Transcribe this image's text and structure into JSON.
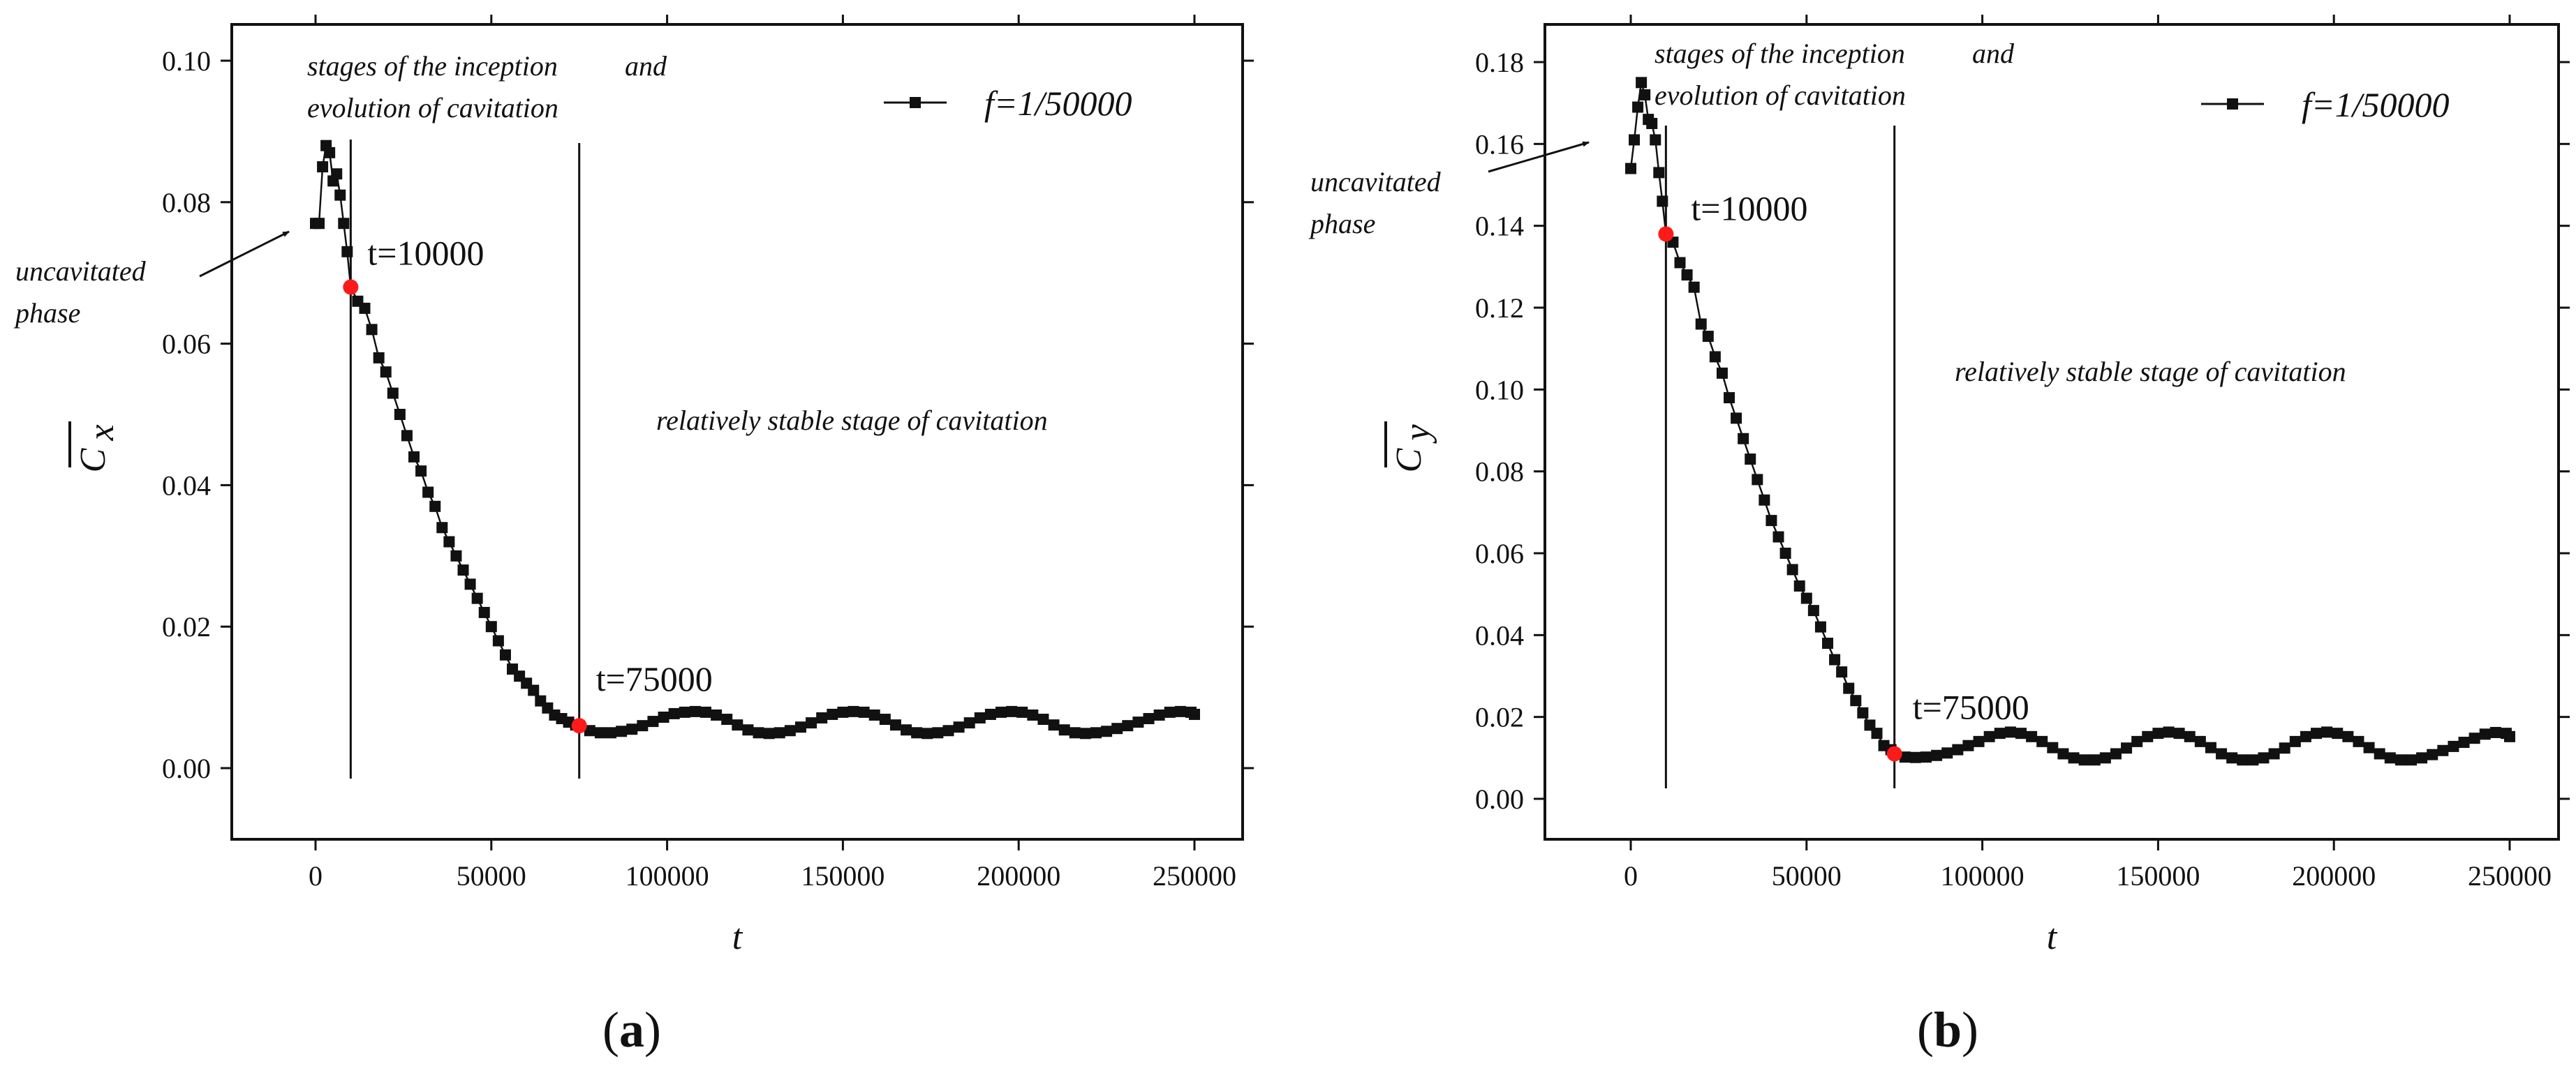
{
  "chart_data": [
    {
      "type": "line",
      "panel_label": "(a)",
      "panel_letter": "a",
      "xlabel": "t",
      "ylabel_symbol": "C",
      "ylabel_subscript": "x",
      "xlim": [
        -25000,
        275000
      ],
      "ylim": [
        -0.01,
        0.105
      ],
      "xticks": [
        0,
        50000,
        100000,
        150000,
        200000,
        250000
      ],
      "xtick_labels": [
        "0",
        "50000",
        "100000",
        "150000",
        "200000",
        "250000"
      ],
      "yticks": [
        0.0,
        0.02,
        0.04,
        0.06,
        0.08,
        0.1
      ],
      "ytick_labels": [
        "0.00",
        "0.02",
        "0.04",
        "0.06",
        "0.08",
        "0.10"
      ],
      "legend": "f=1/50000",
      "series": [
        {
          "name": "f=1/50000",
          "x": [
            0,
            1000,
            2000,
            3000,
            4000,
            5000,
            6000,
            7000,
            8000,
            9000,
            10000,
            12000,
            14000,
            16000,
            18000,
            20000,
            22000,
            24000,
            26000,
            28000,
            30000,
            32000,
            34000,
            36000,
            38000,
            40000,
            42000,
            44000,
            46000,
            48000,
            50000,
            52000,
            54000,
            56000,
            58000,
            60000,
            62000,
            64000,
            66000,
            68000,
            70000,
            72000,
            74000,
            75000,
            78000,
            81000,
            84000,
            87000,
            90000,
            93000,
            96000,
            99000,
            102000,
            105000,
            108000,
            111000,
            114000,
            117000,
            120000,
            123000,
            126000,
            129000,
            132000,
            135000,
            138000,
            141000,
            144000,
            147000,
            150000,
            153000,
            156000,
            159000,
            162000,
            165000,
            168000,
            171000,
            174000,
            177000,
            180000,
            183000,
            186000,
            189000,
            192000,
            195000,
            198000,
            201000,
            204000,
            207000,
            210000,
            213000,
            216000,
            219000,
            222000,
            225000,
            228000,
            231000,
            234000,
            237000,
            240000,
            243000,
            246000,
            249000,
            250000
          ],
          "y": [
            0.077,
            0.077,
            0.085,
            0.088,
            0.087,
            0.083,
            0.084,
            0.081,
            0.077,
            0.073,
            0.068,
            0.066,
            0.065,
            0.062,
            0.058,
            0.056,
            0.053,
            0.05,
            0.047,
            0.044,
            0.042,
            0.039,
            0.037,
            0.034,
            0.032,
            0.03,
            0.028,
            0.026,
            0.024,
            0.022,
            0.02,
            0.018,
            0.016,
            0.014,
            0.013,
            0.012,
            0.011,
            0.0095,
            0.0085,
            0.0075,
            0.007,
            0.0065,
            0.0061,
            0.006,
            0.0053,
            0.005,
            0.005,
            0.0052,
            0.0055,
            0.006,
            0.0066,
            0.0072,
            0.0077,
            0.0079,
            0.008,
            0.0079,
            0.0075,
            0.0069,
            0.0061,
            0.0054,
            0.005,
            0.0049,
            0.005,
            0.0053,
            0.0058,
            0.0064,
            0.0071,
            0.0076,
            0.0079,
            0.008,
            0.0079,
            0.0075,
            0.0069,
            0.0061,
            0.0054,
            0.005,
            0.0049,
            0.005,
            0.0053,
            0.0058,
            0.0064,
            0.0071,
            0.0076,
            0.0079,
            0.008,
            0.0079,
            0.0075,
            0.0069,
            0.0061,
            0.0054,
            0.005,
            0.0049,
            0.005,
            0.0052,
            0.0056,
            0.006,
            0.0065,
            0.007,
            0.0075,
            0.0079,
            0.008,
            0.0079,
            0.0076
          ]
        }
      ],
      "vlines": [
        10000,
        75000
      ],
      "highlights": [
        {
          "x": 10000,
          "y": 0.068,
          "label": "t=10000"
        },
        {
          "x": 75000,
          "y": 0.006,
          "label": "t=75000"
        }
      ],
      "annotations": {
        "stages_line1": "stages of the inception",
        "stages_line2": "and",
        "stages_line3": "evolution of cavitation",
        "uncav_line1": "uncavitated",
        "uncav_line2": "phase",
        "stable": "relatively stable stage of cavitation"
      }
    },
    {
      "type": "line",
      "panel_label": "(b)",
      "panel_letter": "b",
      "xlabel": "t",
      "ylabel_symbol": "C",
      "ylabel_subscript": "y",
      "xlim": [
        -25000,
        275000
      ],
      "ylim": [
        -0.01,
        0.19
      ],
      "xticks": [
        0,
        50000,
        100000,
        150000,
        200000,
        250000
      ],
      "xtick_labels": [
        "0",
        "50000",
        "100000",
        "150000",
        "200000",
        "250000"
      ],
      "yticks": [
        0.0,
        0.02,
        0.04,
        0.06,
        0.08,
        0.1,
        0.12,
        0.14,
        0.16,
        0.18
      ],
      "ytick_labels": [
        "0.00",
        "0.02",
        "0.04",
        "0.06",
        "0.08",
        "0.10",
        "0.12",
        "0.14",
        "0.16",
        "0.18"
      ],
      "legend": "f=1/50000",
      "series": [
        {
          "name": "f=1/50000",
          "x": [
            0,
            1000,
            2000,
            3000,
            4000,
            5000,
            6000,
            7000,
            8000,
            9000,
            10000,
            12000,
            14000,
            16000,
            18000,
            20000,
            22000,
            24000,
            26000,
            28000,
            30000,
            32000,
            34000,
            36000,
            38000,
            40000,
            42000,
            44000,
            46000,
            48000,
            50000,
            52000,
            54000,
            56000,
            58000,
            60000,
            62000,
            64000,
            66000,
            68000,
            70000,
            72000,
            74000,
            75000,
            78000,
            81000,
            84000,
            87000,
            90000,
            93000,
            96000,
            99000,
            102000,
            105000,
            108000,
            111000,
            114000,
            117000,
            120000,
            123000,
            126000,
            129000,
            132000,
            135000,
            138000,
            141000,
            144000,
            147000,
            150000,
            153000,
            156000,
            159000,
            162000,
            165000,
            168000,
            171000,
            174000,
            177000,
            180000,
            183000,
            186000,
            189000,
            192000,
            195000,
            198000,
            201000,
            204000,
            207000,
            210000,
            213000,
            216000,
            219000,
            222000,
            225000,
            228000,
            231000,
            234000,
            237000,
            240000,
            243000,
            246000,
            249000,
            250000
          ],
          "y": [
            0.154,
            0.161,
            0.169,
            0.175,
            0.172,
            0.166,
            0.165,
            0.161,
            0.153,
            0.146,
            0.138,
            0.136,
            0.131,
            0.128,
            0.125,
            0.116,
            0.113,
            0.108,
            0.104,
            0.098,
            0.093,
            0.088,
            0.083,
            0.078,
            0.073,
            0.068,
            0.064,
            0.06,
            0.056,
            0.052,
            0.049,
            0.046,
            0.042,
            0.038,
            0.034,
            0.031,
            0.027,
            0.024,
            0.021,
            0.018,
            0.016,
            0.013,
            0.012,
            0.011,
            0.0102,
            0.0101,
            0.0102,
            0.0106,
            0.0112,
            0.012,
            0.013,
            0.014,
            0.0152,
            0.016,
            0.0163,
            0.016,
            0.0152,
            0.014,
            0.0125,
            0.011,
            0.01,
            0.0095,
            0.0095,
            0.01,
            0.011,
            0.0124,
            0.014,
            0.0152,
            0.016,
            0.0163,
            0.016,
            0.0152,
            0.014,
            0.0125,
            0.011,
            0.01,
            0.0095,
            0.0095,
            0.01,
            0.011,
            0.0124,
            0.014,
            0.0152,
            0.016,
            0.0163,
            0.016,
            0.0152,
            0.014,
            0.0125,
            0.011,
            0.01,
            0.0095,
            0.0095,
            0.01,
            0.0108,
            0.0118,
            0.0128,
            0.0138,
            0.0148,
            0.0158,
            0.0162,
            0.016,
            0.0152
          ]
        }
      ],
      "vlines": [
        10000,
        75000
      ],
      "highlights": [
        {
          "x": 10000,
          "y": 0.138,
          "label": "t=10000"
        },
        {
          "x": 75000,
          "y": 0.011,
          "label": "t=75000"
        }
      ],
      "annotations": {
        "stages_line1": "stages of the inception",
        "stages_line2": "and",
        "stages_line3": "evolution of cavitation",
        "uncav_line1": "uncavitated",
        "uncav_line2": "phase",
        "stable": "relatively stable stage of cavitation"
      }
    }
  ],
  "colors": {
    "series": "#111111",
    "highlight": "#ff1a1a",
    "axis": "#111111"
  }
}
